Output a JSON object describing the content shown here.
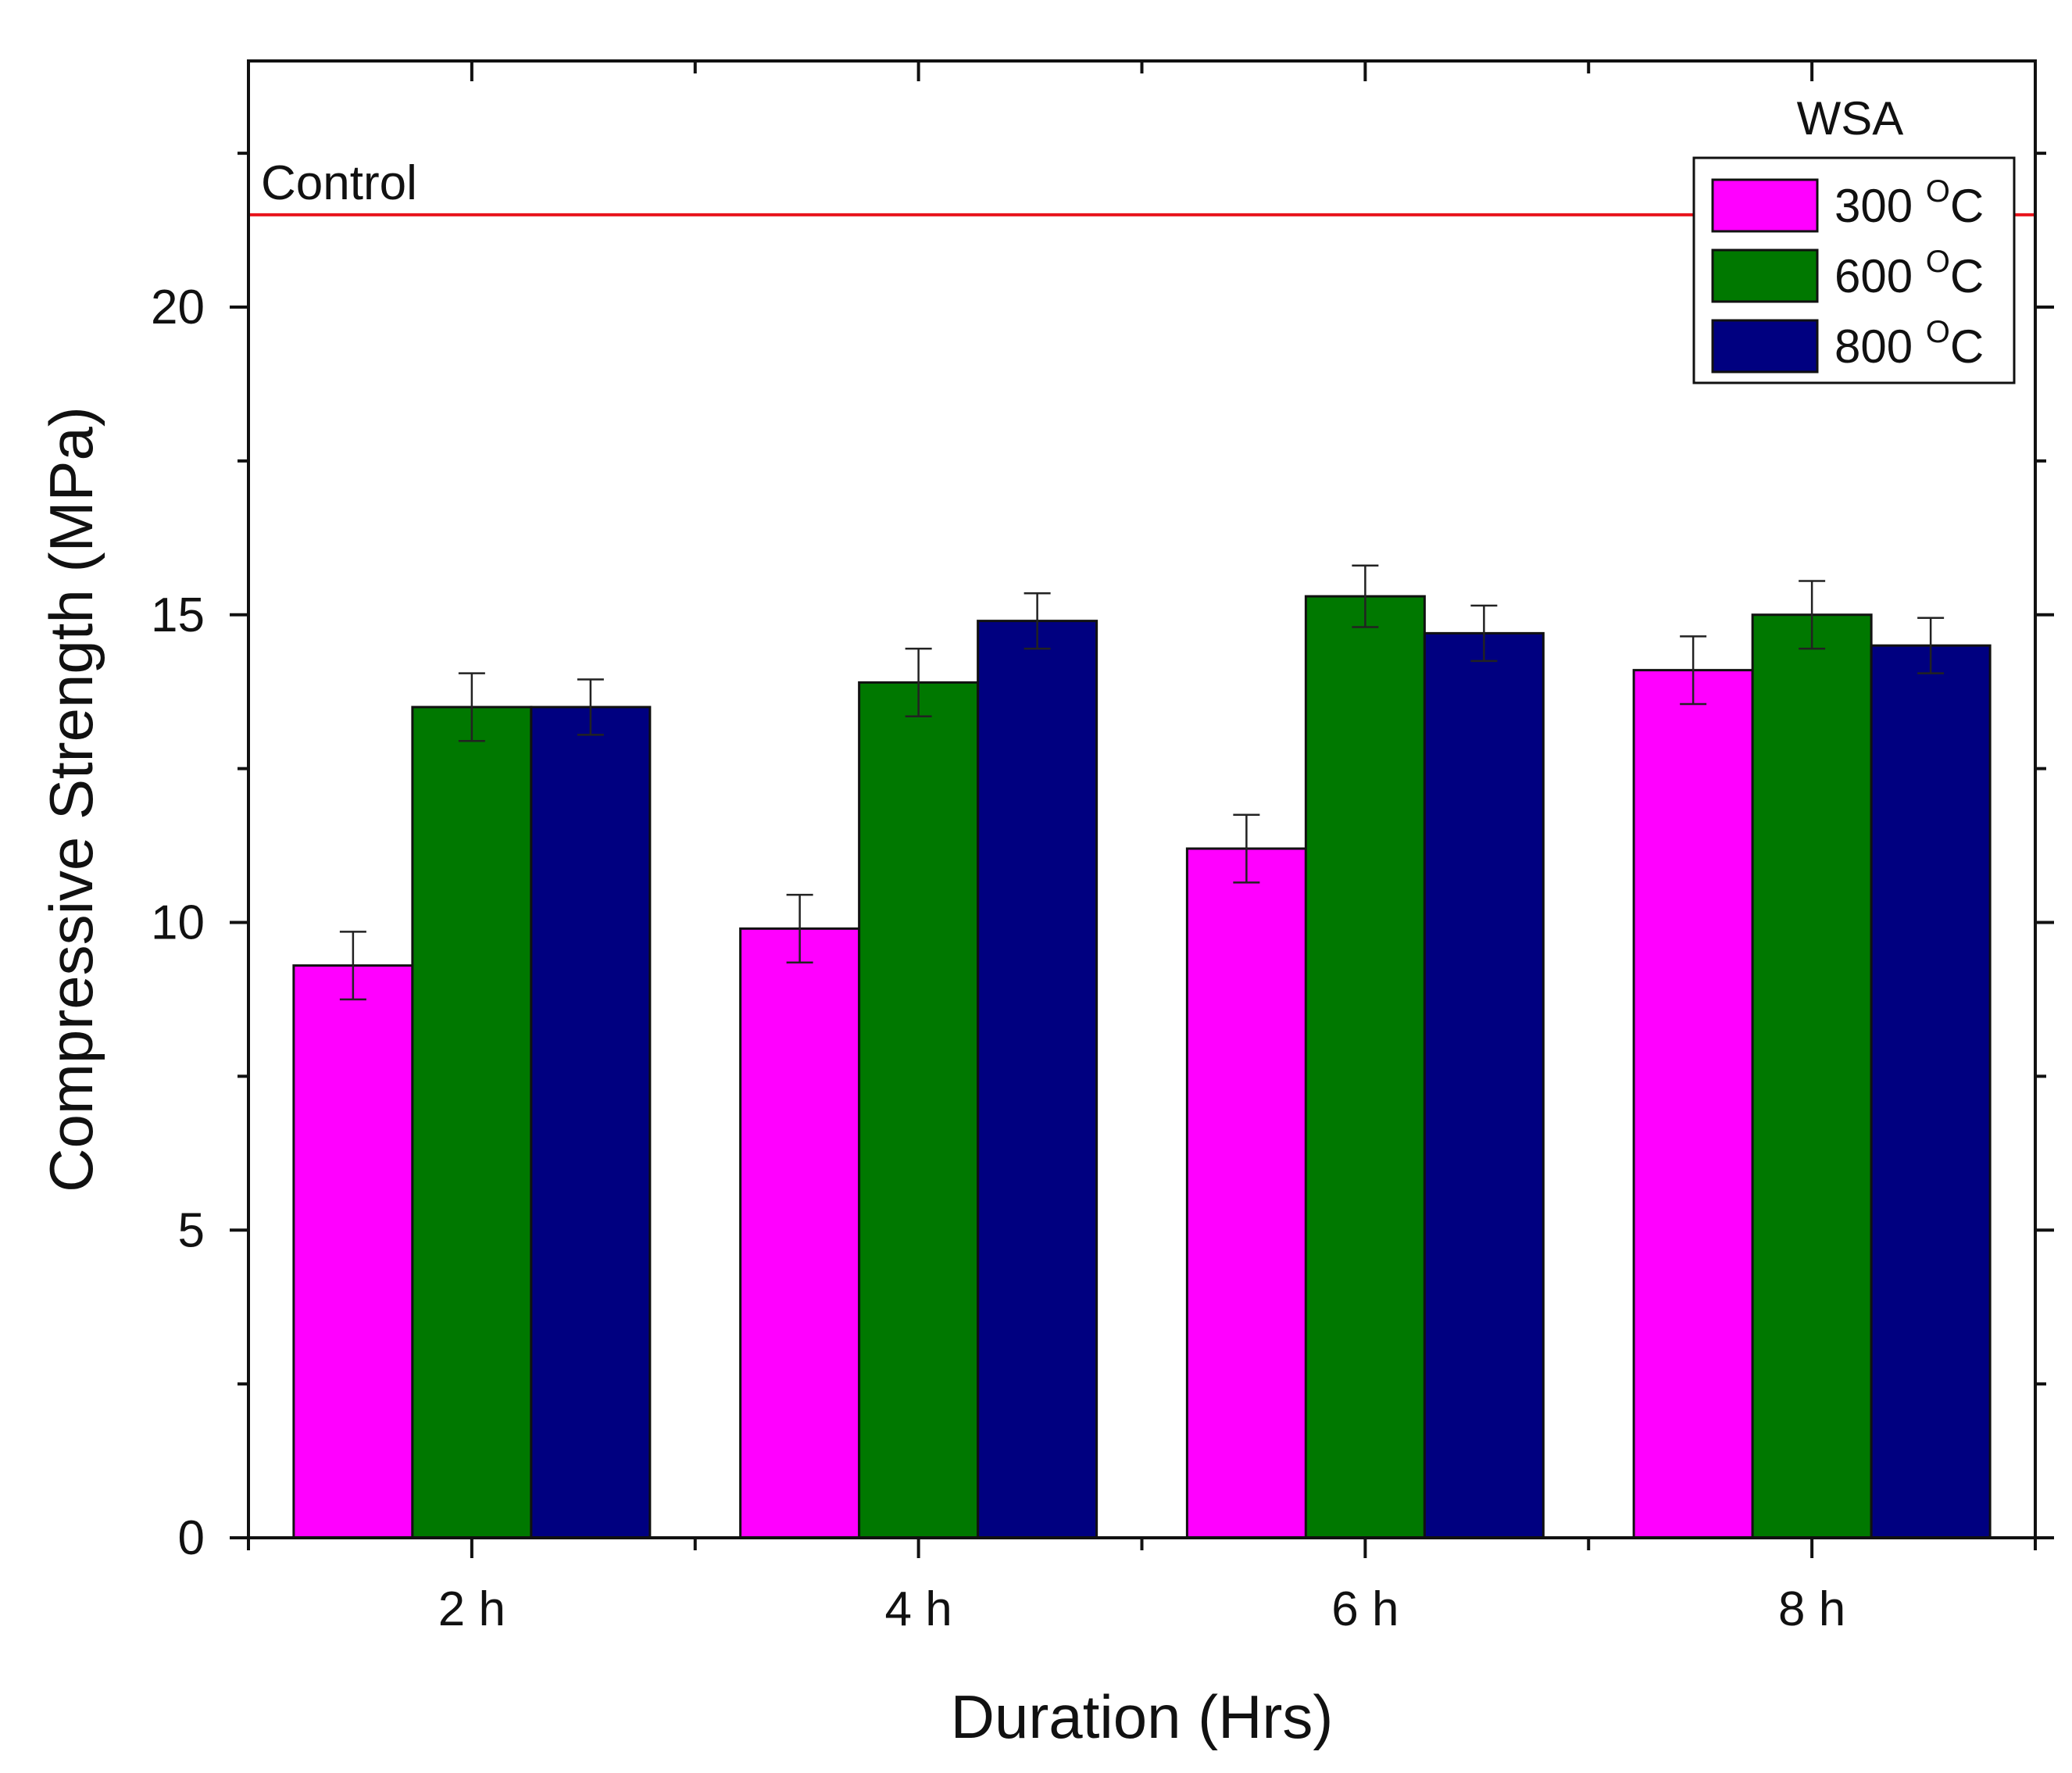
{
  "chart_data": {
    "type": "bar",
    "title": "",
    "xlabel": "Duration (Hrs)",
    "ylabel": "Compressive Strength (MPa)",
    "ylim": [
      0,
      24
    ],
    "yticks": [
      0,
      5,
      10,
      15,
      20
    ],
    "ytick_labels": [
      "0",
      "5",
      "10",
      "15",
      "20"
    ],
    "grid": false,
    "categories": [
      "2 h",
      "4 h",
      "6 h",
      "8 h"
    ],
    "legend": {
      "title": "WSA",
      "placement": "top-right"
    },
    "series": [
      {
        "name": "300 °C",
        "label_value": "300 ",
        "label_super": "O",
        "label_unit": "C",
        "color": "#FF00FF",
        "values": [
          9.3,
          9.9,
          11.2,
          14.1
        ],
        "errors": [
          0.55,
          0.55,
          0.55,
          0.55
        ]
      },
      {
        "name": "600 °C",
        "label_value": "600 ",
        "label_super": "O",
        "label_unit": "C",
        "color": "#007800",
        "values": [
          13.5,
          13.9,
          15.3,
          15.0
        ],
        "errors": [
          0.55,
          0.55,
          0.5,
          0.55
        ]
      },
      {
        "name": "800 °C",
        "label_value": "800 ",
        "label_super": "O",
        "label_unit": "C",
        "color": "#000080",
        "values": [
          13.5,
          14.9,
          14.7,
          14.5
        ],
        "errors": [
          0.45,
          0.45,
          0.45,
          0.45
        ]
      }
    ],
    "reference_line": {
      "label": "Control",
      "value": 21.5,
      "color": "#E8141C"
    }
  }
}
